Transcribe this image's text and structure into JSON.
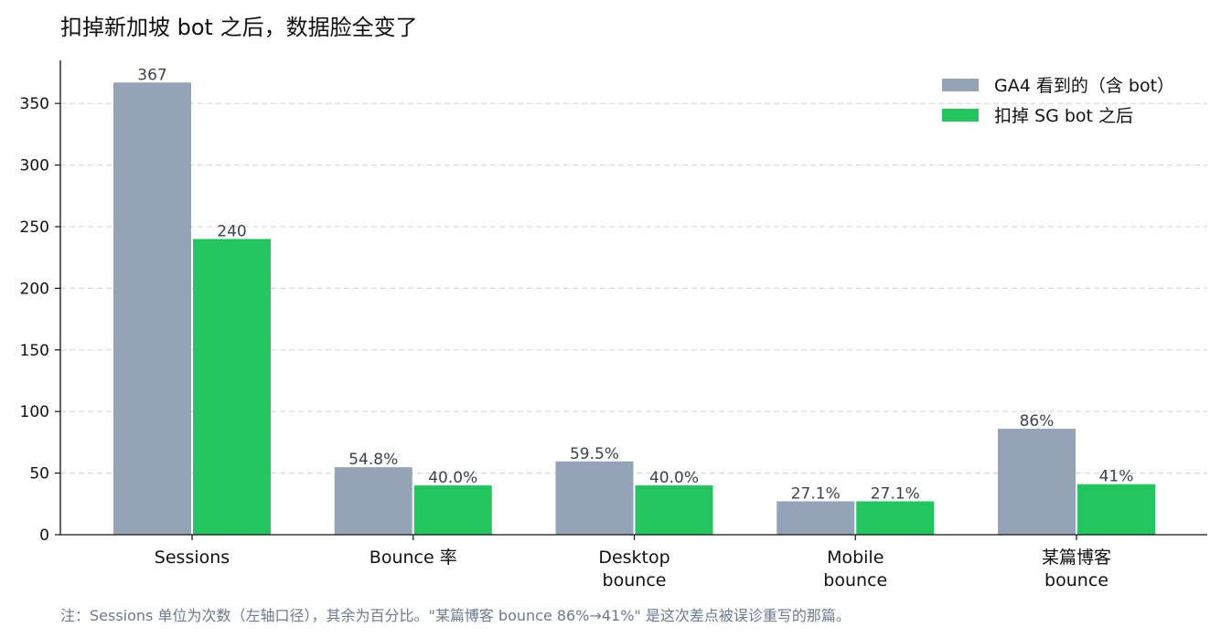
{
  "chart_data": {
    "type": "bar",
    "title": "扣掉新加坡 bot 之后，数据脸全变了",
    "categories": [
      [
        "Sessions"
      ],
      [
        "Bounce 率"
      ],
      [
        "Desktop",
        "bounce"
      ],
      [
        "Mobile",
        "bounce"
      ],
      [
        "某篇博客",
        "bounce"
      ]
    ],
    "series": [
      {
        "name": "GA4 看到的（含 bot）",
        "color": "#94a3b8",
        "values": [
          367,
          54.8,
          59.5,
          27.1,
          86
        ],
        "labels": [
          "367",
          "54.8%",
          "59.5%",
          "27.1%",
          "86%"
        ]
      },
      {
        "name": "扣掉 SG bot 之后",
        "color": "#22c55e",
        "values": [
          240,
          40.0,
          40.0,
          27.1,
          41
        ],
        "labels": [
          "240",
          "40.0%",
          "40.0%",
          "27.1%",
          "41%"
        ]
      }
    ],
    "ylim": [
      0,
      385
    ],
    "yticks": [
      0,
      50,
      100,
      150,
      200,
      250,
      300,
      350
    ],
    "grid": "y-dashed",
    "legend_position": "top-right",
    "note": "注：Sessions 单位为次数（左轴口径），其余为百分比。\"某篇博客 bounce 86%→41%\" 是这次差点被误诊重写的那篇。"
  }
}
